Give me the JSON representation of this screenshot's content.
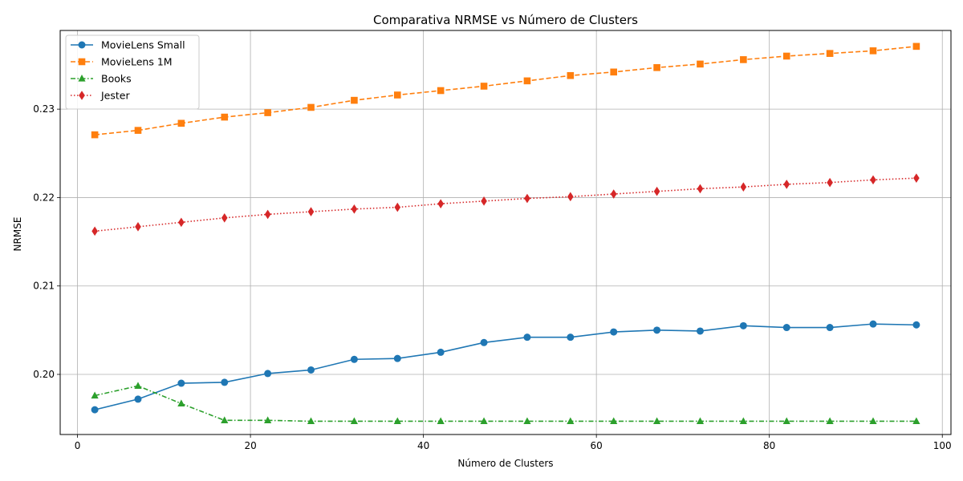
{
  "chart_data": {
    "type": "line",
    "title": "Comparativa NRMSE vs Número de Clusters",
    "xlabel": "Número de Clusters",
    "ylabel": "NRMSE",
    "xlim": [
      -2,
      101
    ],
    "ylim": [
      0.1932,
      0.2389
    ],
    "xticks": [
      0,
      20,
      40,
      60,
      80,
      100
    ],
    "yticks": [
      0.2,
      0.21,
      0.22,
      0.23
    ],
    "ytick_labels": [
      "0.20",
      "0.21",
      "0.22",
      "0.23"
    ],
    "grid": true,
    "legend_position": "top-left",
    "x": [
      2,
      7,
      12,
      17,
      22,
      27,
      32,
      37,
      42,
      47,
      52,
      57,
      62,
      67,
      72,
      77,
      82,
      87,
      92,
      97
    ],
    "series": [
      {
        "name": "MovieLens Small",
        "color": "#1f77b4",
        "linestyle": "solid",
        "marker": "circle",
        "values": [
          0.196,
          0.1972,
          0.199,
          0.1991,
          0.2001,
          0.2005,
          0.2017,
          0.2018,
          0.2025,
          0.2036,
          0.2042,
          0.2042,
          0.2048,
          0.205,
          0.2049,
          0.2055,
          0.2053,
          0.2053,
          0.2057,
          0.2056
        ]
      },
      {
        "name": "MovieLens 1M",
        "color": "#ff7f0e",
        "linestyle": "dashed",
        "marker": "square",
        "values": [
          0.2271,
          0.2276,
          0.2284,
          0.2291,
          0.2296,
          0.2302,
          0.231,
          0.2316,
          0.2321,
          0.2326,
          0.2332,
          0.2338,
          0.2342,
          0.2347,
          0.2351,
          0.2356,
          0.236,
          0.2363,
          0.2366,
          0.2371
        ]
      },
      {
        "name": "Books",
        "color": "#2ca02c",
        "linestyle": "dashdot",
        "marker": "triangle",
        "values": [
          0.1976,
          0.1987,
          0.1967,
          0.1948,
          0.1948,
          0.1947,
          0.1947,
          0.1947,
          0.1947,
          0.1947,
          0.1947,
          0.1947,
          0.1947,
          0.1947,
          0.1947,
          0.1947,
          0.1947,
          0.1947,
          0.1947,
          0.1947
        ]
      },
      {
        "name": "Jester",
        "color": "#d62728",
        "linestyle": "dotted",
        "marker": "diamond",
        "values": [
          0.2162,
          0.2167,
          0.2172,
          0.2177,
          0.2181,
          0.2184,
          0.2187,
          0.2189,
          0.2193,
          0.2196,
          0.2199,
          0.2201,
          0.2204,
          0.2207,
          0.221,
          0.2212,
          0.2215,
          0.2217,
          0.222,
          0.2222
        ]
      }
    ]
  }
}
